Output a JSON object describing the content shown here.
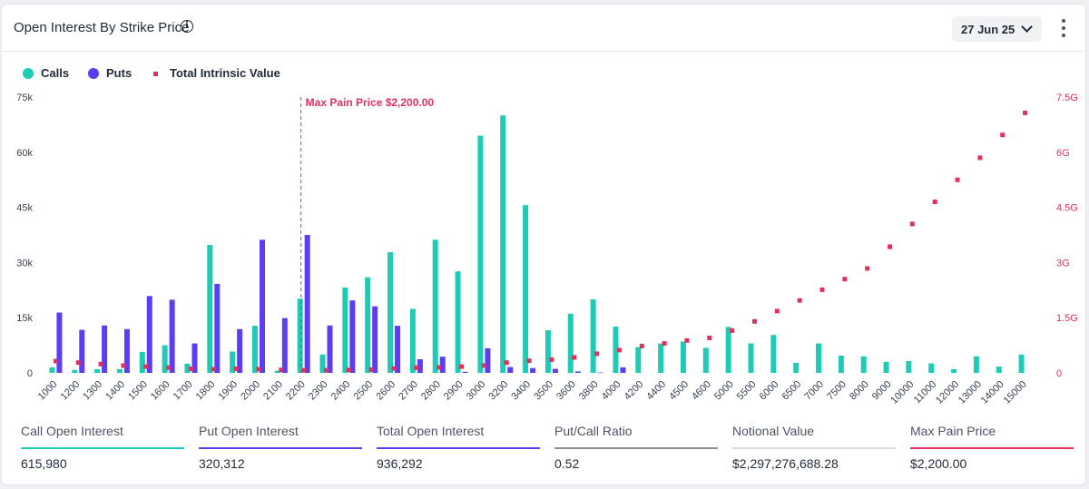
{
  "header": {
    "title": "Open Interest By Strike Price",
    "date_value": "27 Jun 25",
    "info_icon": "info-icon",
    "more_icon": "more-vertical-icon"
  },
  "legend": {
    "items": [
      {
        "label": "Calls",
        "color": "#1ecbb4",
        "shape": "circle"
      },
      {
        "label": "Puts",
        "color": "#5b3df5",
        "shape": "circle"
      },
      {
        "label": "Total Intrinsic Value",
        "color": "#e0315c",
        "shape": "square"
      }
    ]
  },
  "chart_data": {
    "type": "bar",
    "categories": [
      "1000",
      "1200",
      "1300",
      "1400",
      "1500",
      "1600",
      "1700",
      "1800",
      "1900",
      "2000",
      "2100",
      "2200",
      "2300",
      "2400",
      "2500",
      "2600",
      "2700",
      "2800",
      "2900",
      "3000",
      "3200",
      "3400",
      "3500",
      "3600",
      "3800",
      "4000",
      "4200",
      "4400",
      "4500",
      "4600",
      "5000",
      "5500",
      "6000",
      "6500",
      "7000",
      "7500",
      "8000",
      "9000",
      "10000",
      "11000",
      "12000",
      "13000",
      "14000",
      "15000"
    ],
    "series": [
      {
        "name": "Calls",
        "axis": "left",
        "type": "bar",
        "color": "#1ecbb4",
        "values": [
          1500,
          800,
          1000,
          1000,
          5700,
          7500,
          2500,
          34800,
          5800,
          12800,
          600,
          20200,
          5000,
          23200,
          26000,
          32800,
          17400,
          36200,
          27600,
          64500,
          70000,
          45600,
          11600,
          16100,
          20000,
          12600,
          7000,
          8000,
          8500,
          6800,
          12500,
          8000,
          10300,
          2700,
          8000,
          4700,
          4500,
          3000,
          3200,
          2600,
          1000,
          4500,
          1700,
          5000
        ]
      },
      {
        "name": "Puts",
        "axis": "left",
        "type": "bar",
        "color": "#5b3df5",
        "values": [
          16400,
          11700,
          12900,
          11900,
          20900,
          19900,
          8000,
          24200,
          11900,
          36200,
          14900,
          37500,
          12900,
          19700,
          18100,
          12800,
          3700,
          4400,
          300,
          6700,
          1600,
          1300,
          1100,
          400,
          100,
          1500,
          0,
          0,
          0,
          0,
          0,
          0,
          0,
          0,
          0,
          0,
          0,
          0,
          0,
          0,
          0,
          0,
          0,
          0
        ]
      },
      {
        "name": "Total Intrinsic Value",
        "axis": "right",
        "type": "scatter",
        "color": "#e0315c",
        "values": [
          0.32,
          0.28,
          0.24,
          0.2,
          0.17,
          0.14,
          0.11,
          0.1,
          0.11,
          0.1,
          0.08,
          0.07,
          0.07,
          0.08,
          0.09,
          0.12,
          0.14,
          0.15,
          0.17,
          0.2,
          0.28,
          0.33,
          0.36,
          0.42,
          0.52,
          0.62,
          0.73,
          0.8,
          0.88,
          0.95,
          1.15,
          1.4,
          1.68,
          1.97,
          2.26,
          2.55,
          2.84,
          3.43,
          4.05,
          4.65,
          5.25,
          5.85,
          6.47,
          7.07
        ]
      }
    ],
    "y_left": {
      "ylim": [
        0,
        75000
      ],
      "ticks": [
        0,
        15000,
        30000,
        45000,
        60000,
        75000
      ],
      "tick_labels": [
        "0",
        "15k",
        "30k",
        "45k",
        "60k",
        "75k"
      ]
    },
    "y_right": {
      "ylim": [
        0,
        7.5
      ],
      "ticks": [
        0,
        1.5,
        3,
        4.5,
        6,
        7.5
      ],
      "tick_labels": [
        "0",
        "1.5G",
        "3G",
        "4.5G",
        "6G",
        "7.5G"
      ],
      "color": "#e0315c"
    },
    "annotation": {
      "category": "2200",
      "label": "Max Pain Price $2,200.00",
      "color": "#e0315c"
    },
    "legend_position": "top-left",
    "grid": false
  },
  "stats": [
    {
      "label": "Call Open Interest",
      "value": "615,980",
      "color": "#1ecbb4"
    },
    {
      "label": "Put Open Interest",
      "value": "320,312",
      "color": "#5b3df5"
    },
    {
      "label": "Total Open Interest",
      "value": "936,292",
      "color": "#5b3df5"
    },
    {
      "label": "Put/Call Ratio",
      "value": "0.52",
      "color": "#8a8f98"
    },
    {
      "label": "Notional Value",
      "value": "$2,297,276,688.28",
      "color": "#d7dbe0"
    },
    {
      "label": "Max Pain Price",
      "value": "$2,200.00",
      "color": "#e0315c"
    }
  ]
}
